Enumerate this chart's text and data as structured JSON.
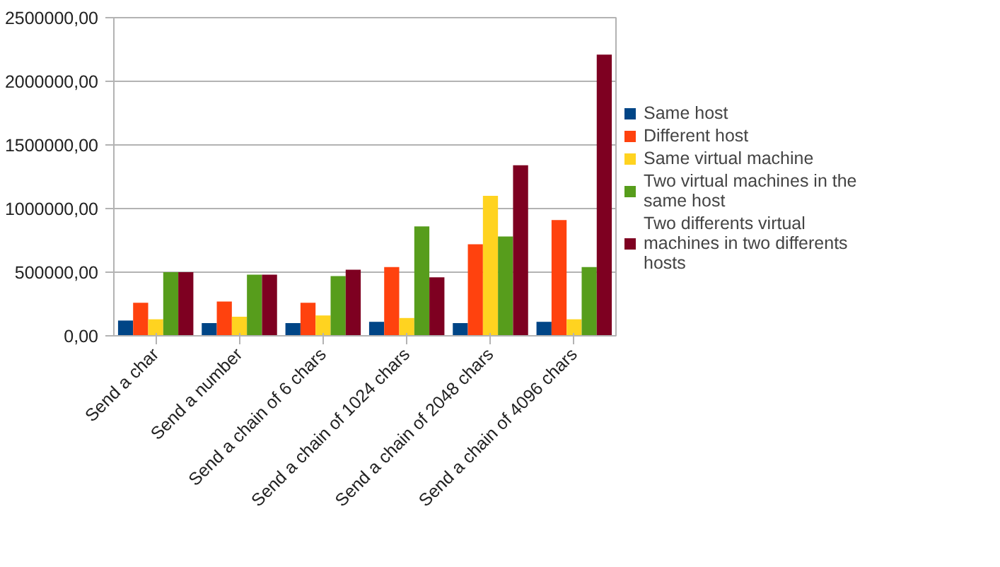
{
  "chart_data": {
    "type": "bar",
    "categories": [
      "Send a char",
      "Send a number",
      "Send a chain of 6 chars",
      "Send a chain of 1024 chars",
      "Send a chain of 2048 chars",
      "Send a chain of 4096 chars"
    ],
    "series": [
      {
        "name": "Same host",
        "color": "#004586",
        "values": [
          120000,
          100000,
          100000,
          110000,
          100000,
          110000
        ]
      },
      {
        "name": "Different host",
        "color": "#ff420e",
        "values": [
          260000,
          270000,
          260000,
          540000,
          720000,
          910000
        ]
      },
      {
        "name": "Same virtual machine",
        "color": "#ffd320",
        "values": [
          130000,
          150000,
          160000,
          140000,
          1100000,
          130000
        ]
      },
      {
        "name": "Two virtual machines in the same host",
        "color": "#579d1c",
        "values": [
          500000,
          480000,
          470000,
          860000,
          780000,
          540000
        ]
      },
      {
        "name": "Two differents virtual machines in two differents hosts",
        "color": "#7e0021",
        "values": [
          500000,
          480000,
          520000,
          460000,
          1340000,
          2210000
        ]
      }
    ],
    "ylim": [
      0,
      2500000
    ],
    "yticks": [
      {
        "value": 0,
        "label": "0,00"
      },
      {
        "value": 500000,
        "label": "500000,00"
      },
      {
        "value": 1000000,
        "label": "1000000,00"
      },
      {
        "value": 1500000,
        "label": "1500000,00"
      },
      {
        "value": 2000000,
        "label": "2000000,00"
      },
      {
        "value": 2500000,
        "label": "2500000,00"
      }
    ],
    "grid": "y",
    "legend": "right"
  }
}
